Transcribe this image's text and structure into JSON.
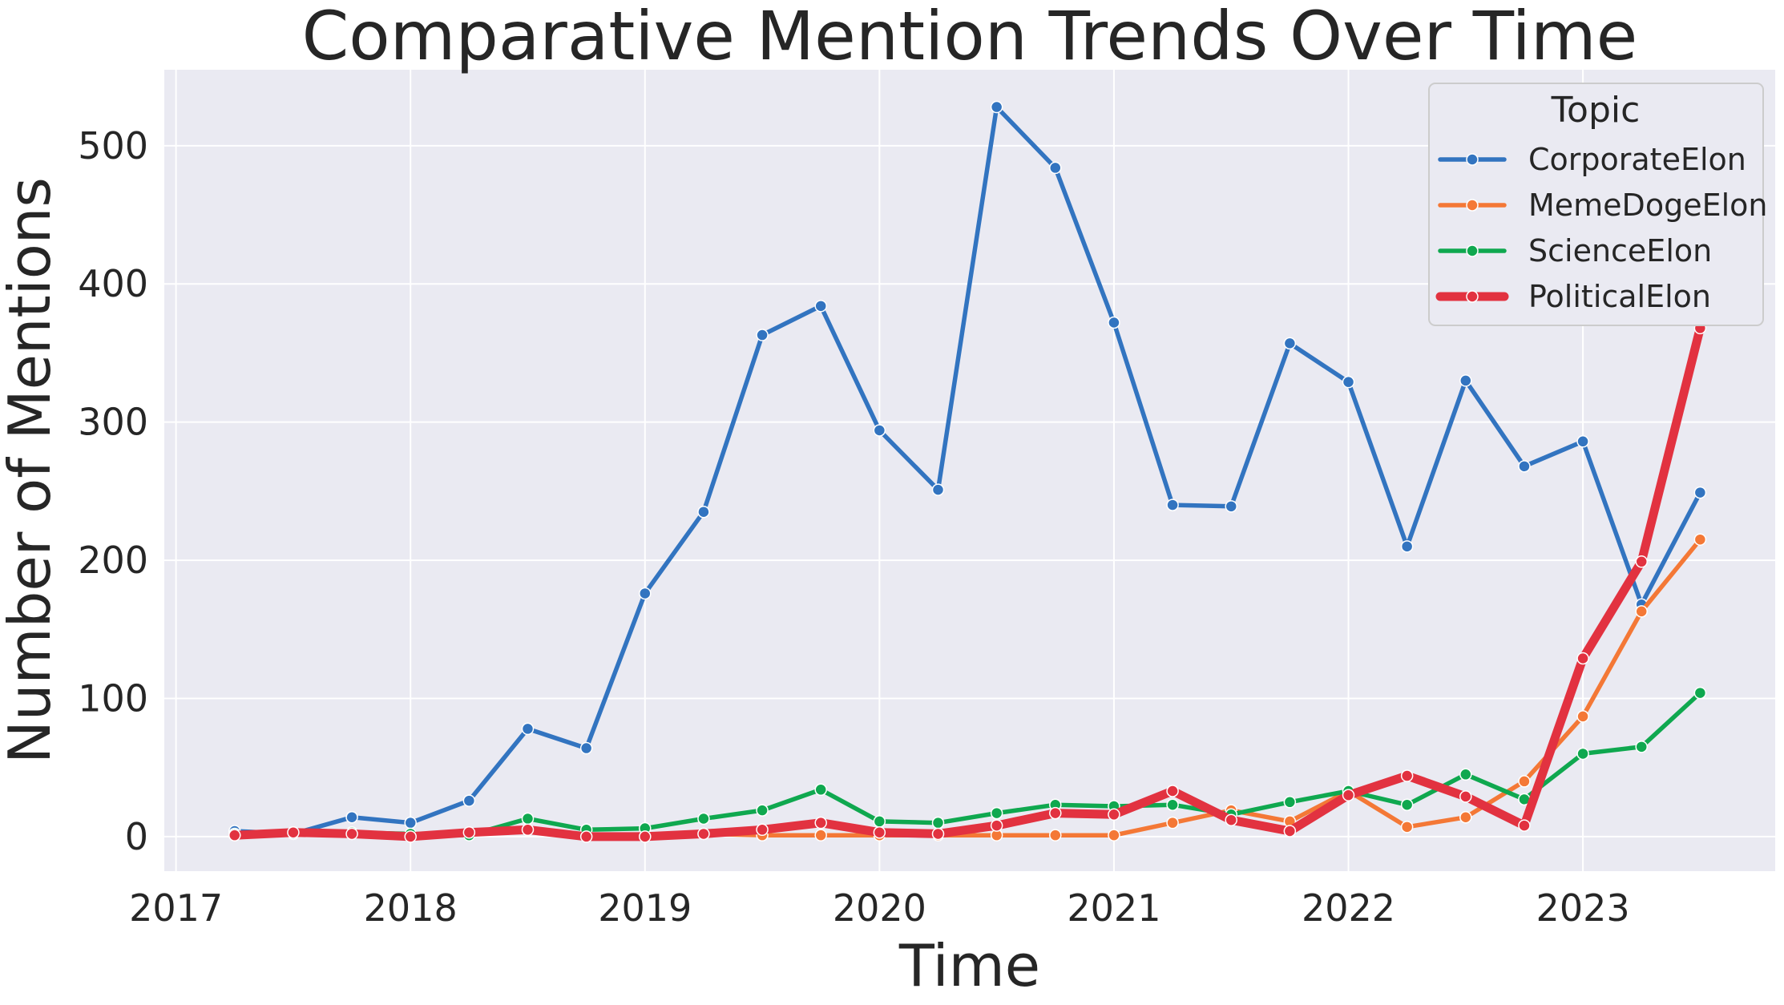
{
  "chart_data": {
    "type": "line",
    "title": "Comparative Mention Trends Over Time",
    "xlabel": "Time",
    "ylabel": "Number of Mentions",
    "xlim": [
      2016.95,
      2023.82
    ],
    "ylim": [
      -25,
      555
    ],
    "x_ticks": [
      2017,
      2018,
      2019,
      2020,
      2021,
      2022,
      2023
    ],
    "y_ticks": [
      0,
      100,
      200,
      300,
      400,
      500
    ],
    "grid": true,
    "legend_placement": "top-right",
    "legend_title": "Topic",
    "x": [
      "2017-Q2",
      "2017-Q3",
      "2017-Q4",
      "2018-Q1",
      "2018-Q2",
      "2018-Q3",
      "2018-Q4",
      "2019-Q1",
      "2019-Q2",
      "2019-Q3",
      "2019-Q4",
      "2020-Q1",
      "2020-Q2",
      "2020-Q3",
      "2020-Q4",
      "2021-Q1",
      "2021-Q2",
      "2021-Q3",
      "2021-Q4",
      "2022-Q1",
      "2022-Q2",
      "2022-Q3",
      "2022-Q4",
      "2023-Q1",
      "2023-Q2",
      "2023-Q3"
    ],
    "series": [
      {
        "name": "CorporateElon",
        "color": "#3274c0",
        "values": [
          4,
          2,
          14,
          10,
          26,
          78,
          64,
          176,
          235,
          363,
          384,
          294,
          251,
          528,
          484,
          372,
          240,
          239,
          357,
          329,
          210,
          330,
          268,
          286,
          168,
          249
        ]
      },
      {
        "name": "MemeDogeElon",
        "color": "#f47836",
        "values": [
          1,
          3,
          2,
          1,
          2,
          5,
          1,
          1,
          2,
          1,
          1,
          1,
          1,
          1,
          1,
          1,
          10,
          19,
          11,
          33,
          7,
          14,
          40,
          87,
          163,
          215
        ]
      },
      {
        "name": "ScienceElon",
        "color": "#0fa84f",
        "values": [
          2,
          3,
          3,
          2,
          1,
          13,
          5,
          6,
          13,
          19,
          34,
          11,
          10,
          17,
          23,
          22,
          23,
          16,
          25,
          33,
          23,
          45,
          27,
          60,
          65,
          104
        ]
      },
      {
        "name": "PoliticalElon",
        "color": "#e23240",
        "values": [
          1,
          3,
          2,
          0,
          3,
          5,
          0,
          0,
          2,
          5,
          10,
          3,
          2,
          8,
          17,
          16,
          33,
          12,
          4,
          30,
          44,
          29,
          8,
          129,
          199,
          368
        ]
      }
    ]
  }
}
